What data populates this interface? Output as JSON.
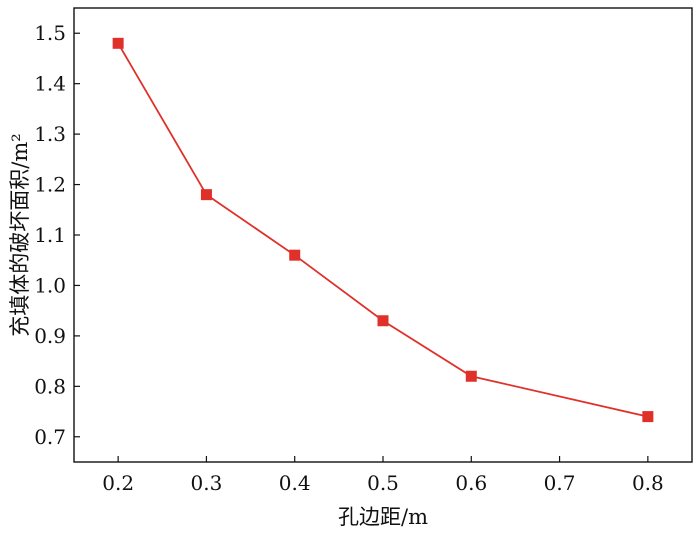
{
  "chart_data": {
    "type": "line",
    "title": "",
    "xlabel": "孔边距/m",
    "ylabel": "充填体的破坏面积/m²",
    "x": [
      0.2,
      0.3,
      0.4,
      0.5,
      0.6,
      0.8
    ],
    "series": [
      {
        "values": [
          1.48,
          1.18,
          1.06,
          0.93,
          0.82,
          0.74
        ]
      }
    ],
    "xlim": [
      0.15,
      0.85
    ],
    "ylim": [
      0.65,
      1.55
    ],
    "xticks": [
      "0.2",
      "0.3",
      "0.4",
      "0.5",
      "0.6",
      "0.7",
      "0.8"
    ],
    "yticks": [
      "0.7",
      "0.8",
      "0.9",
      "1.0",
      "1.1",
      "1.2",
      "1.3",
      "1.4",
      "1.5"
    ],
    "marker": "square",
    "color": "#e0302a",
    "grid": false,
    "legend": "none"
  }
}
